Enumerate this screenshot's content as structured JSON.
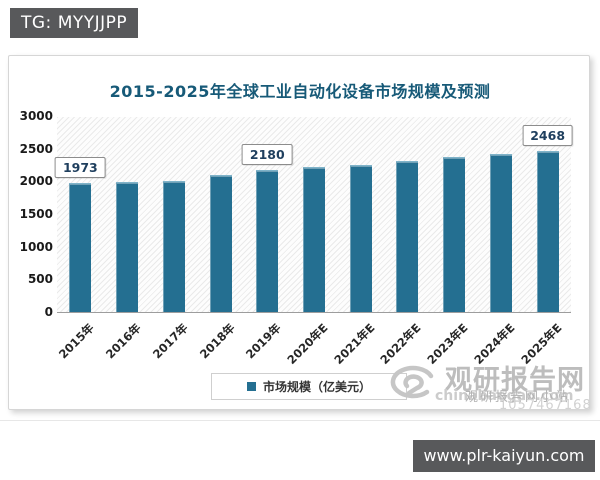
{
  "page": {
    "tg_label": "TG: MYYJJPP",
    "url_label": "www.plr-kaiyun.com"
  },
  "chart_data": {
    "type": "bar",
    "title": "2015-2025年全球工业自动化设备市场规模及预测",
    "categories": [
      "2015年",
      "2016年",
      "2017年",
      "2018年",
      "2019年",
      "2020年E",
      "2021年E",
      "2022年E",
      "2023年E",
      "2024年E",
      "2025年E"
    ],
    "values": [
      1973,
      1990,
      2010,
      2100,
      2180,
      2220,
      2255,
      2305,
      2370,
      2420,
      2468
    ],
    "labeled_points": [
      {
        "index": 0,
        "label": "1973"
      },
      {
        "index": 4,
        "label": "2180"
      },
      {
        "index": 10,
        "label": "2468"
      }
    ],
    "legend": [
      "市场规模（亿美元）"
    ],
    "legend_position": "bottom",
    "xlabel": "",
    "ylabel": "",
    "ylim": [
      0,
      3000
    ],
    "yticks": [
      0,
      500,
      1000,
      1500,
      2000,
      2500,
      3000
    ],
    "grid": false,
    "plot_background": "hatched-diagonal",
    "bar_color": "#246f91",
    "title_color": "#175a78"
  },
  "watermark": {
    "brand": "观研报告网",
    "domain": "chinabaogao.com",
    "overlay_site": "观研报告网小站",
    "overlay_id": "1057467168"
  }
}
